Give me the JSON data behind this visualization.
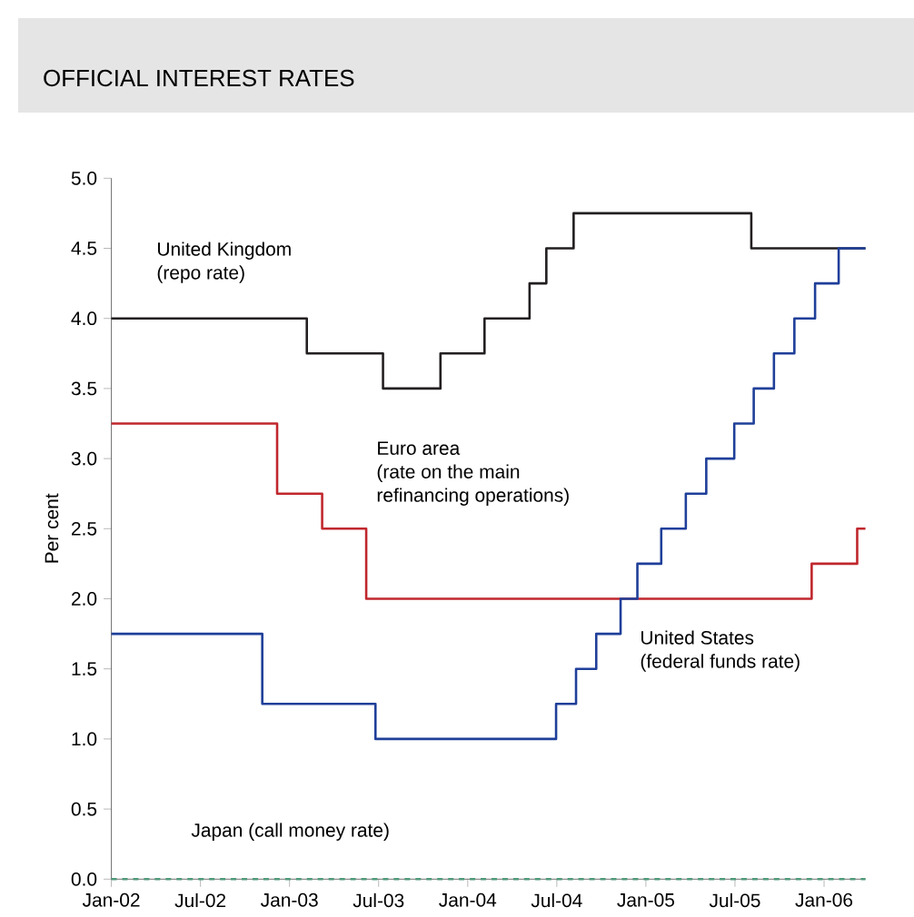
{
  "chart_data": {
    "type": "step",
    "title": "OFFICIAL INTEREST RATES",
    "ylabel": "Per cent",
    "ylim": [
      0,
      5
    ],
    "yticks": [
      {
        "value": 0,
        "label": "0.0"
      },
      {
        "value": 0.5,
        "label": "0.5"
      },
      {
        "value": 1,
        "label": "1.0"
      },
      {
        "value": 1.5,
        "label": "1.5"
      },
      {
        "value": 2,
        "label": "2.0"
      },
      {
        "value": 2.5,
        "label": "2.5"
      },
      {
        "value": 3,
        "label": "3.0"
      },
      {
        "value": 3.5,
        "label": "3.5"
      },
      {
        "value": 4,
        "label": "4.0"
      },
      {
        "value": 4.5,
        "label": "4.5"
      },
      {
        "value": 5,
        "label": "5.0"
      }
    ],
    "xlim": [
      "2002-01-01",
      "2006-03-25"
    ],
    "xticks": [
      {
        "value": "2002-01-01",
        "label": "Jan-02"
      },
      {
        "value": "2002-07-01",
        "label": "Jul-02"
      },
      {
        "value": "2003-01-01",
        "label": "Jan-03"
      },
      {
        "value": "2003-07-01",
        "label": "Jul-03"
      },
      {
        "value": "2004-01-01",
        "label": "Jan-04"
      },
      {
        "value": "2004-07-01",
        "label": "Jul-04"
      },
      {
        "value": "2005-01-01",
        "label": "Jan-05"
      },
      {
        "value": "2005-07-01",
        "label": "Jul-05"
      },
      {
        "value": "2006-01-01",
        "label": "Jan-06"
      }
    ],
    "grid": false,
    "marker": "none",
    "series": [
      {
        "name": "United Kingdom\n(repo rate)",
        "color": "#231f20",
        "x": [
          "2002-01-01",
          "2003-02-06",
          "2003-07-10",
          "2003-11-06",
          "2004-02-05",
          "2004-05-06",
          "2004-06-10",
          "2004-08-05",
          "2005-08-04",
          "2006-03-25"
        ],
        "values": [
          4.0,
          3.75,
          3.5,
          3.75,
          4.0,
          4.25,
          4.5,
          4.75,
          4.5,
          4.5
        ]
      },
      {
        "name": "Euro area\n(rate on the main\nrefinancing operations)",
        "color": "#c0272d",
        "x": [
          "2002-01-01",
          "2002-12-06",
          "2003-03-07",
          "2003-06-06",
          "2005-12-06",
          "2006-03-08",
          "2006-03-25"
        ],
        "values": [
          3.25,
          2.75,
          2.5,
          2.0,
          2.25,
          2.5,
          2.5
        ]
      },
      {
        "name": "United States\n(federal funds rate)",
        "color": "#1f3f99",
        "x": [
          "2002-01-01",
          "2002-11-06",
          "2003-06-25",
          "2004-06-30",
          "2004-08-10",
          "2004-09-21",
          "2004-11-10",
          "2004-12-14",
          "2005-02-02",
          "2005-03-22",
          "2005-05-03",
          "2005-06-30",
          "2005-08-09",
          "2005-09-20",
          "2005-11-01",
          "2005-12-13",
          "2006-01-31",
          "2006-03-25"
        ],
        "values": [
          1.75,
          1.25,
          1.0,
          1.25,
          1.5,
          1.75,
          2.0,
          2.25,
          2.5,
          2.75,
          3.0,
          3.25,
          3.5,
          3.75,
          4.0,
          4.25,
          4.5,
          4.5
        ]
      },
      {
        "name": "Japan (call money rate)",
        "color": "#4f9a7a",
        "line_style": "dashed",
        "x": [
          "2002-01-01",
          "2006-03-25"
        ],
        "values": [
          0.0,
          0.0
        ]
      }
    ]
  }
}
